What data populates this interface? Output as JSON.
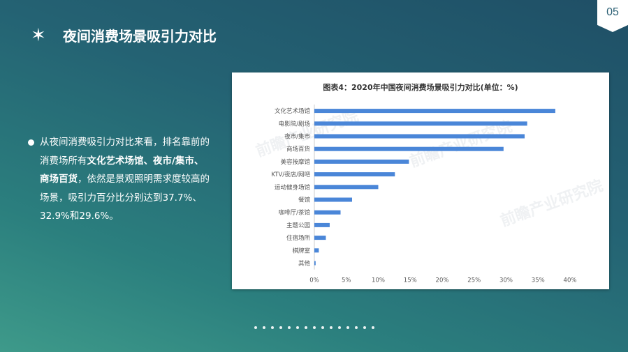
{
  "page_number": "05",
  "title": "夜间消费场景吸引力对比",
  "title_marker": "✶",
  "paragraph": {
    "p1": "从夜间消费吸引力对比来看，排名靠前的消费场所有",
    "b1": "文化艺术场馆、夜市/集市、商场百货",
    "p2": "，依然是景观照明需求度较高的场景，吸引力百分比分别达到37.7%、32.9%和29.6%。"
  },
  "watermark_text": "前瞻产业研究院",
  "colors": {
    "bar": "#4a86d8",
    "accent_text": "#ffffff"
  },
  "chart_data": {
    "type": "bar",
    "orientation": "horizontal",
    "title": "图表4：2020年中国夜间消费场景吸引力对比(单位：%)",
    "categories": [
      "文化艺术场馆",
      "电影院/剧场",
      "夜市/集市",
      "商场百货",
      "美容按摩馆",
      "KTV/夜店/网吧",
      "运动健身场馆",
      "餐馆",
      "咖啡厅/茶馆",
      "主题公园",
      "住宿场所",
      "棋牌室",
      "其他"
    ],
    "values": [
      37.7,
      33.3,
      32.9,
      29.6,
      14.8,
      12.6,
      10.0,
      5.9,
      4.1,
      2.4,
      1.8,
      0.7,
      0.2
    ],
    "xlim": [
      0,
      40
    ],
    "xticks": [
      "0%",
      "5%",
      "10%",
      "15%",
      "20%",
      "25%",
      "30%",
      "35%",
      "40%"
    ],
    "grid": false
  }
}
